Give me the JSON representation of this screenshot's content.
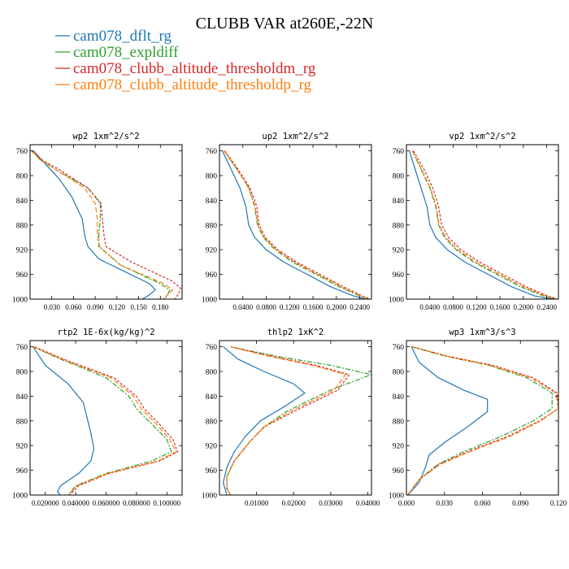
{
  "chart_data": {
    "title": "CLUBB VAR at260E,-22N",
    "legend": [
      {
        "label": "cam078_dflt_rg",
        "color": "#1f77b4",
        "dash": ""
      },
      {
        "label": "cam078_expldiff",
        "color": "#2ca02c",
        "dash": "6,2,2,2"
      },
      {
        "label": "cam078_clubb_altitude_thresholdm_rg",
        "color": "#d62728",
        "dash": "3,2"
      },
      {
        "label": "cam078_clubb_altitude_thresholdp_rg",
        "color": "#ff7f0e",
        "dash": "6,3"
      }
    ],
    "y_axis": {
      "ticks": [
        760,
        800,
        840,
        880,
        920,
        960,
        1000
      ],
      "labels": [
        "760",
        "800",
        "840",
        "880",
        "920",
        "960",
        "1000"
      ],
      "range": [
        750,
        1000
      ],
      "inverted": true
    },
    "panels": [
      {
        "type": "line",
        "title": "wp2  1xm^2/s^2",
        "xlim": [
          0.0,
          0.21
        ],
        "xticks": [
          0.03,
          0.06,
          0.09,
          0.12,
          0.15,
          0.18
        ],
        "xtick_labels": [
          "0.030",
          "0.060",
          "0.090",
          "0.120",
          "0.150",
          "0.180"
        ],
        "series": [
          {
            "name": "cam078_dflt_rg",
            "x": [
              0.005,
              0.02,
              0.04,
              0.058,
              0.072,
              0.076,
              0.08,
              0.095,
              0.13,
              0.165,
              0.173,
              0.165,
              0.155
            ],
            "y": [
              760,
              780,
              805,
              835,
              870,
              900,
              915,
              935,
              955,
              975,
              985,
              993,
              1000
            ]
          },
          {
            "name": "cam078_expldiff",
            "x": [
              0.002,
              0.015,
              0.035,
              0.08,
              0.097,
              0.097,
              0.095,
              0.095,
              0.125,
              0.18,
              0.193,
              0.19,
              0.185
            ],
            "y": [
              760,
              775,
              790,
              820,
              845,
              870,
              895,
              915,
              945,
              975,
              985,
              993,
              1000
            ]
          },
          {
            "name": "cam078_clubb_altitude_thresholdm_rg",
            "x": [
              0.003,
              0.017,
              0.04,
              0.08,
              0.098,
              0.1,
              0.102,
              0.105,
              0.14,
              0.195,
              0.208,
              0.205,
              0.2
            ],
            "y": [
              760,
              775,
              790,
              820,
              845,
              870,
              895,
              915,
              940,
              970,
              982,
              992,
              1000
            ]
          },
          {
            "name": "cam078_clubb_altitude_thresholdp_rg",
            "x": [
              0.002,
              0.014,
              0.035,
              0.075,
              0.09,
              0.093,
              0.093,
              0.096,
              0.125,
              0.185,
              0.197,
              0.19,
              0.185
            ],
            "y": [
              760,
              775,
              790,
              820,
              845,
              870,
              895,
              915,
              945,
              975,
              985,
              993,
              1000
            ]
          }
        ]
      },
      {
        "type": "line",
        "title": "up2  1xm^2/s^2",
        "xlim": [
          0.0,
          0.26
        ],
        "xticks": [
          0.04,
          0.08,
          0.12,
          0.16,
          0.2,
          0.24
        ],
        "xtick_labels": [
          "0.0400",
          "0.0800",
          "0.1200",
          "0.1600",
          "0.2000",
          "0.2400"
        ],
        "series": [
          {
            "name": "cam078_dflt_rg",
            "x": [
              0.005,
              0.02,
              0.035,
              0.045,
              0.05,
              0.06,
              0.08,
              0.11,
              0.15,
              0.19,
              0.23,
              0.25
            ],
            "y": [
              760,
              790,
              820,
              850,
              880,
              900,
              920,
              940,
              960,
              980,
              995,
              1000
            ]
          },
          {
            "name": "cam078_expldiff",
            "x": [
              0.008,
              0.03,
              0.05,
              0.06,
              0.065,
              0.075,
              0.095,
              0.125,
              0.165,
              0.205,
              0.24,
              0.255
            ],
            "y": [
              760,
              790,
              820,
              850,
              880,
              900,
              920,
              940,
              960,
              980,
              995,
              1000
            ]
          },
          {
            "name": "cam078_clubb_altitude_thresholdm_rg",
            "x": [
              0.009,
              0.032,
              0.052,
              0.064,
              0.068,
              0.078,
              0.1,
              0.132,
              0.172,
              0.212,
              0.245,
              0.258
            ],
            "y": [
              760,
              790,
              820,
              850,
              880,
              900,
              920,
              940,
              960,
              980,
              995,
              1000
            ]
          },
          {
            "name": "cam078_clubb_altitude_thresholdp_rg",
            "x": [
              0.008,
              0.03,
              0.05,
              0.061,
              0.066,
              0.076,
              0.097,
              0.128,
              0.168,
              0.208,
              0.242,
              0.256
            ],
            "y": [
              760,
              790,
              820,
              850,
              880,
              900,
              920,
              940,
              960,
              980,
              995,
              1000
            ]
          }
        ]
      },
      {
        "type": "line",
        "title": "vp2  1xm^2/s^2",
        "xlim": [
          0.0,
          0.26
        ],
        "xticks": [
          0.04,
          0.08,
          0.12,
          0.16,
          0.2,
          0.24
        ],
        "xtick_labels": [
          "0.0400",
          "0.0800",
          "0.1200",
          "0.1600",
          "0.2000",
          "0.2400"
        ],
        "series": [
          {
            "name": "cam078_dflt_rg",
            "x": [
              0.005,
              0.015,
              0.025,
              0.035,
              0.04,
              0.05,
              0.07,
              0.1,
              0.14,
              0.18,
              0.22,
              0.25
            ],
            "y": [
              760,
              790,
              820,
              850,
              880,
              900,
              920,
              940,
              960,
              980,
              995,
              1000
            ]
          },
          {
            "name": "cam078_expldiff",
            "x": [
              0.01,
              0.025,
              0.04,
              0.05,
              0.055,
              0.065,
              0.085,
              0.115,
              0.155,
              0.195,
              0.235,
              0.255
            ],
            "y": [
              760,
              790,
              820,
              850,
              880,
              900,
              920,
              940,
              960,
              980,
              995,
              1000
            ]
          },
          {
            "name": "cam078_clubb_altitude_thresholdm_rg",
            "x": [
              0.012,
              0.03,
              0.045,
              0.055,
              0.06,
              0.072,
              0.093,
              0.125,
              0.165,
              0.205,
              0.242,
              0.258
            ],
            "y": [
              760,
              790,
              820,
              850,
              880,
              900,
              920,
              940,
              960,
              980,
              995,
              1000
            ]
          },
          {
            "name": "cam078_clubb_altitude_thresholdp_rg",
            "x": [
              0.01,
              0.026,
              0.041,
              0.051,
              0.056,
              0.067,
              0.088,
              0.119,
              0.159,
              0.2,
              0.238,
              0.256
            ],
            "y": [
              760,
              790,
              820,
              850,
              880,
              900,
              920,
              940,
              960,
              980,
              995,
              1000
            ]
          }
        ]
      },
      {
        "type": "line",
        "title": "rtp2  1E-6x(kg/kg)^2",
        "xlim": [
          0.01,
          0.11
        ],
        "xticks": [
          0.02,
          0.04,
          0.06,
          0.08,
          0.1
        ],
        "xtick_labels": [
          "0.020000",
          "0.040000",
          "0.060000",
          "0.080000",
          "0.100000"
        ],
        "series": [
          {
            "name": "cam078_dflt_rg",
            "x": [
              0.012,
              0.02,
              0.035,
              0.045,
              0.048,
              0.05,
              0.052,
              0.05,
              0.042,
              0.03,
              0.028,
              0.03
            ],
            "y": [
              760,
              790,
              820,
              850,
              880,
              900,
              925,
              945,
              965,
              985,
              995,
              1000
            ]
          },
          {
            "name": "cam078_expldiff",
            "x": [
              0.012,
              0.03,
              0.06,
              0.075,
              0.08,
              0.09,
              0.1,
              0.103,
              0.09,
              0.06,
              0.04,
              0.035
            ],
            "y": [
              760,
              780,
              810,
              840,
              860,
              885,
              910,
              930,
              945,
              965,
              985,
              1000
            ]
          },
          {
            "name": "cam078_clubb_altitude_thresholdm_rg",
            "x": [
              0.013,
              0.032,
              0.065,
              0.08,
              0.085,
              0.095,
              0.104,
              0.107,
              0.095,
              0.062,
              0.042,
              0.036
            ],
            "y": [
              760,
              780,
              810,
              840,
              860,
              885,
              910,
              930,
              945,
              965,
              985,
              1000
            ]
          },
          {
            "name": "cam078_clubb_altitude_thresholdp_rg",
            "x": [
              0.012,
              0.031,
              0.063,
              0.078,
              0.083,
              0.093,
              0.102,
              0.106,
              0.094,
              0.061,
              0.041,
              0.035
            ],
            "y": [
              760,
              780,
              810,
              840,
              860,
              885,
              910,
              930,
              945,
              965,
              985,
              1000
            ]
          }
        ]
      },
      {
        "type": "line",
        "title": "thlp2  1xK^2",
        "xlim": [
          0.0,
          0.041
        ],
        "xticks": [
          0.01,
          0.02,
          0.03,
          0.04
        ],
        "xtick_labels": [
          "0.01000",
          "0.02000",
          "0.03000",
          "0.04000"
        ],
        "series": [
          {
            "name": "cam078_dflt_rg",
            "x": [
              0.001,
              0.005,
              0.012,
              0.02,
              0.023,
              0.018,
              0.011,
              0.007,
              0.004,
              0.002,
              0.001,
              0.002
            ],
            "y": [
              760,
              780,
              800,
              820,
              835,
              855,
              880,
              905,
              930,
              955,
              980,
              1000
            ]
          },
          {
            "name": "cam078_expldiff",
            "x": [
              0.003,
              0.015,
              0.03,
              0.041,
              0.03,
              0.018,
              0.012,
              0.008,
              0.004,
              0.002,
              0.002,
              0.003
            ],
            "y": [
              760,
              775,
              790,
              805,
              830,
              865,
              890,
              915,
              945,
              970,
              990,
              1000
            ]
          },
          {
            "name": "cam078_clubb_altitude_thresholdm_rg",
            "x": [
              0.003,
              0.014,
              0.026,
              0.035,
              0.032,
              0.02,
              0.012,
              0.008,
              0.004,
              0.002,
              0.002,
              0.003
            ],
            "y": [
              760,
              775,
              790,
              805,
              830,
              865,
              890,
              915,
              945,
              970,
              990,
              1000
            ]
          },
          {
            "name": "cam078_clubb_altitude_thresholdp_rg",
            "x": [
              0.003,
              0.013,
              0.025,
              0.034,
              0.031,
              0.019,
              0.012,
              0.008,
              0.004,
              0.002,
              0.002,
              0.003
            ],
            "y": [
              760,
              775,
              790,
              805,
              830,
              865,
              890,
              915,
              945,
              970,
              990,
              1000
            ]
          }
        ]
      },
      {
        "type": "line",
        "title": "wp3  1xm^3/s^3",
        "xlim": [
          0.0,
          0.12
        ],
        "xticks": [
          0.0,
          0.03,
          0.06,
          0.09,
          0.12
        ],
        "xtick_labels": [
          "0.000",
          "0.030",
          "0.060",
          "0.090",
          "0.120"
        ],
        "series": [
          {
            "name": "cam078_dflt_rg",
            "x": [
              0.004,
              0.01,
              0.025,
              0.045,
              0.064,
              0.064,
              0.048,
              0.03,
              0.018,
              0.015,
              0.01,
              0.001
            ],
            "y": [
              760,
              785,
              810,
              830,
              845,
              865,
              890,
              915,
              935,
              955,
              980,
              1000
            ]
          },
          {
            "name": "cam078_expldiff",
            "x": [
              0.004,
              0.03,
              0.065,
              0.095,
              0.115,
              0.115,
              0.1,
              0.075,
              0.045,
              0.025,
              0.01,
              0.001
            ],
            "y": [
              760,
              775,
              790,
              810,
              835,
              860,
              880,
              905,
              930,
              950,
              975,
              1000
            ]
          },
          {
            "name": "cam078_clubb_altitude_thresholdm_rg",
            "x": [
              0.005,
              0.032,
              0.068,
              0.1,
              0.119,
              0.12,
              0.105,
              0.08,
              0.048,
              0.026,
              0.01,
              0.001
            ],
            "y": [
              760,
              775,
              790,
              810,
              835,
              860,
              880,
              905,
              930,
              950,
              975,
              1000
            ]
          },
          {
            "name": "cam078_clubb_altitude_thresholdp_rg",
            "x": [
              0.005,
              0.031,
              0.066,
              0.098,
              0.118,
              0.12,
              0.106,
              0.082,
              0.05,
              0.027,
              0.01,
              0.001
            ],
            "y": [
              760,
              775,
              790,
              810,
              835,
              860,
              880,
              905,
              930,
              950,
              975,
              1000
            ]
          }
        ]
      }
    ]
  }
}
